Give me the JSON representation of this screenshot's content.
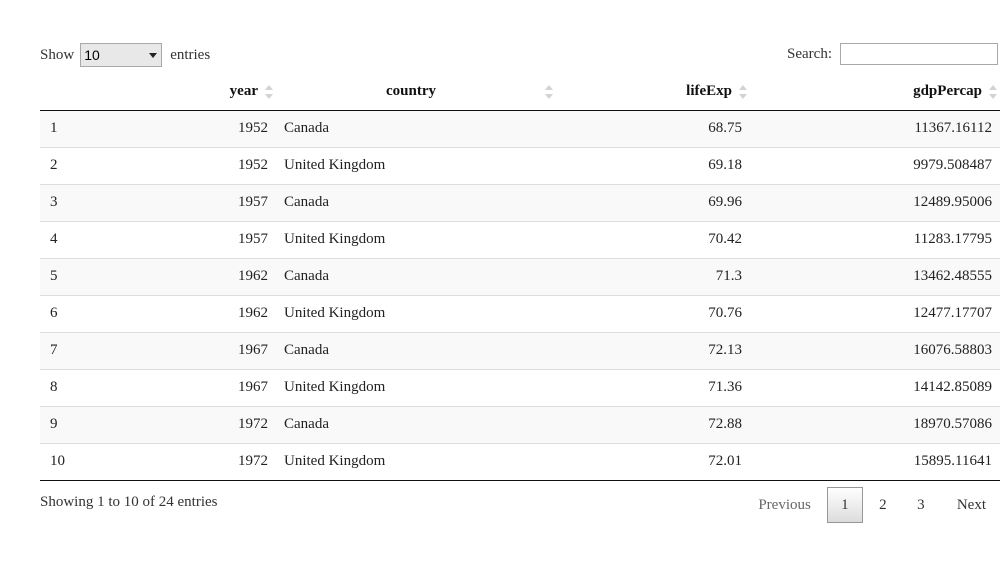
{
  "length_control": {
    "prefix": "Show",
    "selected": "10",
    "suffix": "entries"
  },
  "search": {
    "label": "Search:",
    "value": ""
  },
  "table": {
    "headers": {
      "year": "year",
      "country": "country",
      "lifeExp": "lifeExp",
      "gdpPercap": "gdpPercap"
    },
    "rows": [
      {
        "idx": "1",
        "year": "1952",
        "country": "Canada",
        "lifeExp": "68.75",
        "gdpPercap": "11367.16112"
      },
      {
        "idx": "2",
        "year": "1952",
        "country": "United Kingdom",
        "lifeExp": "69.18",
        "gdpPercap": "9979.508487"
      },
      {
        "idx": "3",
        "year": "1957",
        "country": "Canada",
        "lifeExp": "69.96",
        "gdpPercap": "12489.95006"
      },
      {
        "idx": "4",
        "year": "1957",
        "country": "United Kingdom",
        "lifeExp": "70.42",
        "gdpPercap": "11283.17795"
      },
      {
        "idx": "5",
        "year": "1962",
        "country": "Canada",
        "lifeExp": "71.3",
        "gdpPercap": "13462.48555"
      },
      {
        "idx": "6",
        "year": "1962",
        "country": "United Kingdom",
        "lifeExp": "70.76",
        "gdpPercap": "12477.17707"
      },
      {
        "idx": "7",
        "year": "1967",
        "country": "Canada",
        "lifeExp": "72.13",
        "gdpPercap": "16076.58803"
      },
      {
        "idx": "8",
        "year": "1967",
        "country": "United Kingdom",
        "lifeExp": "71.36",
        "gdpPercap": "14142.85089"
      },
      {
        "idx": "9",
        "year": "1972",
        "country": "Canada",
        "lifeExp": "72.88",
        "gdpPercap": "18970.57086"
      },
      {
        "idx": "10",
        "year": "1972",
        "country": "United Kingdom",
        "lifeExp": "72.01",
        "gdpPercap": "15895.11641"
      }
    ]
  },
  "info": "Showing 1 to 10 of 24 entries",
  "pagination": {
    "previous": "Previous",
    "pages": [
      "1",
      "2",
      "3"
    ],
    "current": "1",
    "next": "Next"
  },
  "icons": {
    "sort": "sort-both-icon",
    "dropdown": "chevron-down-icon"
  }
}
